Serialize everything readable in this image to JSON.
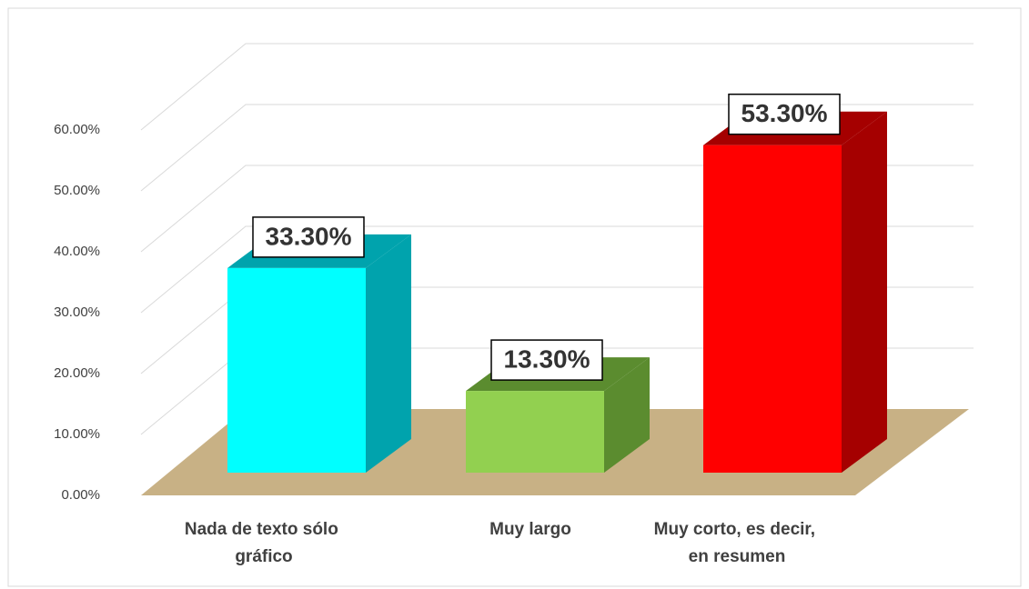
{
  "chart_data": {
    "type": "bar3d",
    "categories": [
      "Nada de texto sólo gráfico",
      "Muy largo",
      "Muy corto, es decir, en resumen"
    ],
    "values": [
      33.3,
      13.3,
      53.3
    ],
    "value_labels": [
      "33.30%",
      "13.30%",
      "53.30%"
    ],
    "colors": [
      "#00ffff",
      "#92d050",
      "#ff0000"
    ],
    "side_colors": [
      "#00a3ad",
      "#5b8c2f",
      "#a50000"
    ],
    "ylim": [
      0,
      60
    ],
    "yticks": [
      {
        "value": 0,
        "label": "0.00%"
      },
      {
        "value": 10,
        "label": "10.00%"
      },
      {
        "value": 20,
        "label": "20.00%"
      },
      {
        "value": 30,
        "label": "30.00%"
      },
      {
        "value": 40,
        "label": "40.00%"
      },
      {
        "value": 50,
        "label": "50.00%"
      },
      {
        "value": 60,
        "label": "60.00%"
      }
    ],
    "grid": true
  }
}
